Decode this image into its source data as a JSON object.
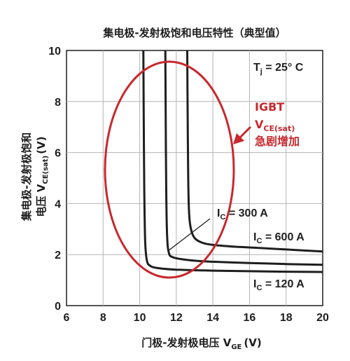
{
  "chart_data": {
    "type": "line",
    "title": "集电极-发射极饱和电压特性（典型值）",
    "xlabel": "门极-发射极电压 V",
    "xlabel_sub": "GE",
    "xlabel_unit": "(V)",
    "ylabel_line1": "集电极-发射极饱和",
    "ylabel_line2_prefix": "电压 V",
    "ylabel_sub": "CE(sat)",
    "ylabel_unit": "(V)",
    "xlim": [
      6,
      20
    ],
    "ylim": [
      0,
      10
    ],
    "xticks": [
      "6",
      "8",
      "10",
      "12",
      "14",
      "16",
      "18",
      "20"
    ],
    "yticks": [
      "0",
      "2",
      "4",
      "6",
      "8",
      "10"
    ],
    "grid": true,
    "series": [
      {
        "name": "IC = 120 A",
        "x": [
          10.2,
          10.22,
          10.25,
          10.3,
          10.4,
          10.6,
          11,
          12,
          14,
          16,
          18,
          20
        ],
        "y": [
          10,
          7.5,
          4.5,
          2.5,
          1.75,
          1.55,
          1.47,
          1.41,
          1.37,
          1.35,
          1.33,
          1.32
        ]
      },
      {
        "name": "IC = 300 A",
        "x": [
          11.4,
          11.42,
          11.45,
          11.5,
          11.6,
          11.8,
          12.2,
          13,
          14,
          16,
          18,
          20
        ],
        "y": [
          10,
          7.5,
          4.5,
          2.7,
          2.05,
          1.9,
          1.83,
          1.76,
          1.72,
          1.67,
          1.63,
          1.6
        ]
      },
      {
        "name": "IC = 600 A",
        "x": [
          12.6,
          12.62,
          12.65,
          12.7,
          12.8,
          13,
          13.4,
          14,
          15,
          16,
          18,
          20
        ],
        "y": [
          10,
          7.5,
          5,
          3.6,
          3,
          2.65,
          2.47,
          2.38,
          2.32,
          2.28,
          2.2,
          2.12
        ]
      }
    ],
    "annotations": {
      "temperature": {
        "main": "T",
        "sub": "j",
        "rest": " = 25° C"
      },
      "ic_labels": [
        {
          "prefix": "I",
          "sub": "C",
          "rest": " = 300 A"
        },
        {
          "prefix": "I",
          "sub": "C",
          "rest": " = 600 A"
        },
        {
          "prefix": "I",
          "sub": "C",
          "rest": " = 120 A"
        }
      ],
      "red_text": {
        "line1": "IGBT",
        "line2_main": "V",
        "line2_sub": "CE(sat)",
        "line3": "急剧增加"
      }
    },
    "colors": {
      "curve": "#1e1e1e",
      "grid": "#b4b4b4",
      "highlight": "#c8282d"
    }
  }
}
